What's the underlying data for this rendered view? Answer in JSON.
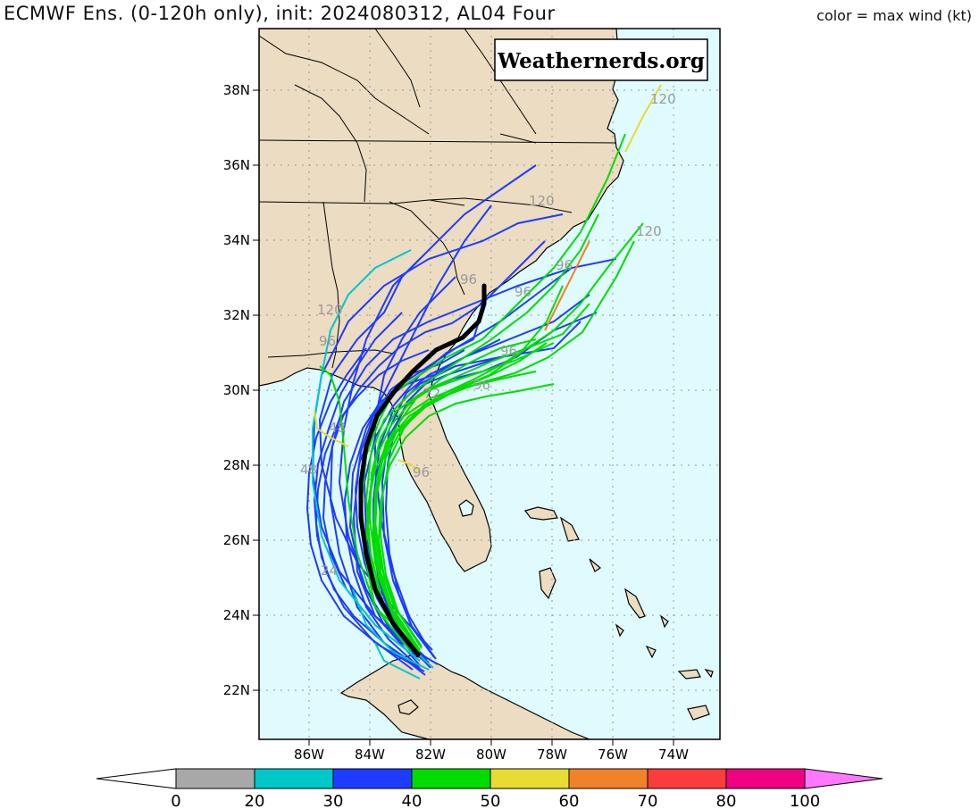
{
  "header": {
    "title": "ECMWF Ens. (0-120h only), init: 2024080312, AL04 Four",
    "color_note": "color = max wind (kt)"
  },
  "watermark": "Weathernerds.org",
  "map": {
    "lat_ticks": [
      "22N",
      "24N",
      "26N",
      "28N",
      "30N",
      "32N",
      "34N",
      "36N",
      "38N"
    ],
    "lon_ticks": [
      "86W",
      "84W",
      "82W",
      "80W",
      "78W",
      "76W",
      "74W"
    ],
    "colors": {
      "land": "#ecdcc2",
      "ocean": "#e0fbfd",
      "mean_track": "#000000"
    },
    "hour_labels": [
      "120",
      "120",
      "120",
      "120",
      "96",
      "96",
      "96",
      "96",
      "96",
      "96",
      "96",
      "72",
      "48",
      "48",
      "24"
    ]
  },
  "colorbar": {
    "ticks": [
      "0",
      "20",
      "30",
      "40",
      "50",
      "60",
      "70",
      "80",
      "100"
    ],
    "colors": [
      "#ffffff",
      "#a8a8a8",
      "#00c8c8",
      "#1e3cff",
      "#00dc00",
      "#e6dc32",
      "#f08228",
      "#fa3c3c",
      "#f00082",
      "#ff78ff"
    ]
  }
}
